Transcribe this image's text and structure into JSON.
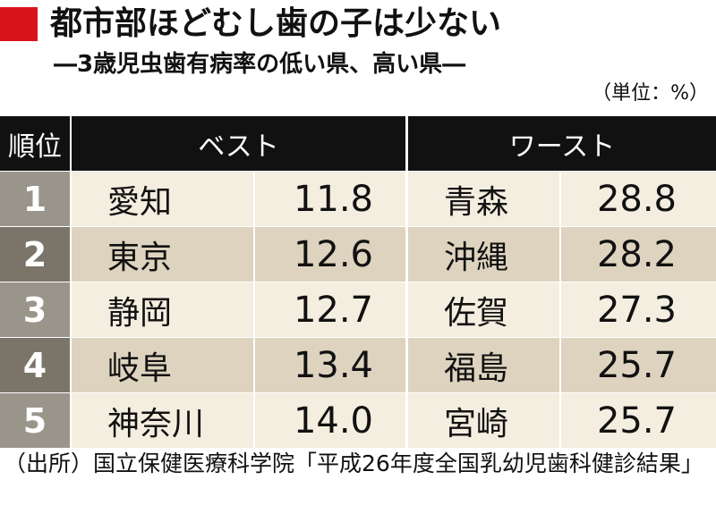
{
  "header": {
    "title": "都市部ほどむし歯の子は少ない",
    "subtitle": "―3歳児虫歯有病率の低い県、高い県―",
    "unit": "（単位：%）"
  },
  "table": {
    "columns": [
      "順位",
      "ベスト",
      "ワースト"
    ],
    "rows": [
      [
        "1",
        "愛知",
        "11.8",
        "青森",
        "28.8"
      ],
      [
        "2",
        "東京",
        "12.6",
        "沖縄",
        "28.2"
      ],
      [
        "3",
        "静岡",
        "12.7",
        "佐賀",
        "27.3"
      ],
      [
        "4",
        "岐阜",
        "13.4",
        "福島",
        "25.7"
      ],
      [
        "5",
        "神奈川",
        "14.0",
        "宮崎",
        "25.7"
      ]
    ]
  },
  "footer": {
    "source": "（出所）国立保健医療科学院「平成26年度全国乳幼児歯科健診結果」"
  }
}
